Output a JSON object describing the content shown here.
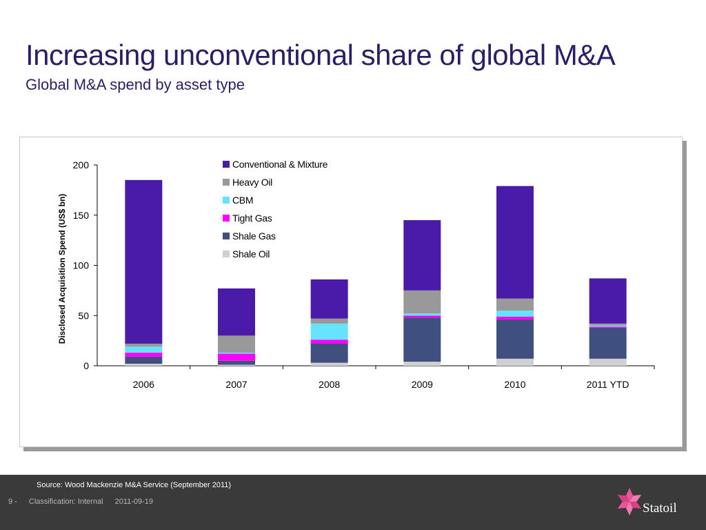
{
  "slide": {
    "title": "Increasing unconventional share of global M&A",
    "subtitle": "Global M&A spend by asset type"
  },
  "chart_data": {
    "type": "bar",
    "stacked": true,
    "categories": [
      "2006",
      "2007",
      "2008",
      "2009",
      "2010",
      "2011 YTD"
    ],
    "ylabel": "Disclosed Acquisition Spend (US$ bn)",
    "xlabel": "",
    "ylim": [
      0,
      200
    ],
    "yticks": [
      0,
      50,
      100,
      150,
      200
    ],
    "grid": false,
    "legend_position": "top-center",
    "series": [
      {
        "name": "Shale Oil",
        "color": "#d0d0d0",
        "values": [
          2,
          1,
          3,
          4,
          7,
          7
        ]
      },
      {
        "name": "Shale Gas",
        "color": "#3f5080",
        "values": [
          7,
          4,
          19,
          44,
          39,
          31
        ]
      },
      {
        "name": "Tight Gas",
        "color": "#ff00ff",
        "values": [
          4,
          7,
          4,
          2,
          3,
          1
        ]
      },
      {
        "name": "CBM",
        "color": "#66e4ff",
        "values": [
          6,
          1,
          16,
          2,
          6,
          1
        ]
      },
      {
        "name": "Heavy Oil",
        "color": "#999999",
        "values": [
          3,
          17,
          5,
          23,
          12,
          2
        ]
      },
      {
        "name": "Conventional & Mixture",
        "color": "#4a1aa8",
        "values": [
          163,
          47,
          39,
          70,
          112,
          45
        ]
      }
    ],
    "legend_order": [
      "Conventional & Mixture",
      "Heavy Oil",
      "CBM",
      "Tight Gas",
      "Shale Gas",
      "Shale Oil"
    ]
  },
  "footer": {
    "source": "Source: Wood Mackenzie M&A Service (September 2011)",
    "page": "9 -",
    "classification": "Classification: Internal",
    "date": "2011-09-19",
    "logo_text": "Statoil"
  }
}
